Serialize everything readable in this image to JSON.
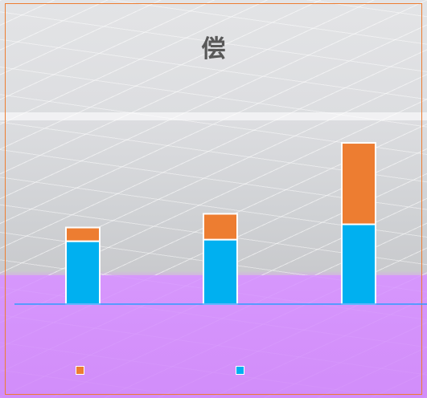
{
  "chart_data": {
    "type": "bar",
    "stacked": true,
    "title": "偿",
    "xlabel": "",
    "ylabel": "",
    "categories": [
      "",
      "",
      ""
    ],
    "series": [
      {
        "values": [
          78,
          80,
          99
        ],
        "color": "#00b0f0"
      },
      {
        "values": [
          17,
          32,
          101
        ],
        "color": "#ed7d31"
      }
    ],
    "ylim": [
      0,
      210
    ],
    "grid": false,
    "legend": "bottom"
  }
}
